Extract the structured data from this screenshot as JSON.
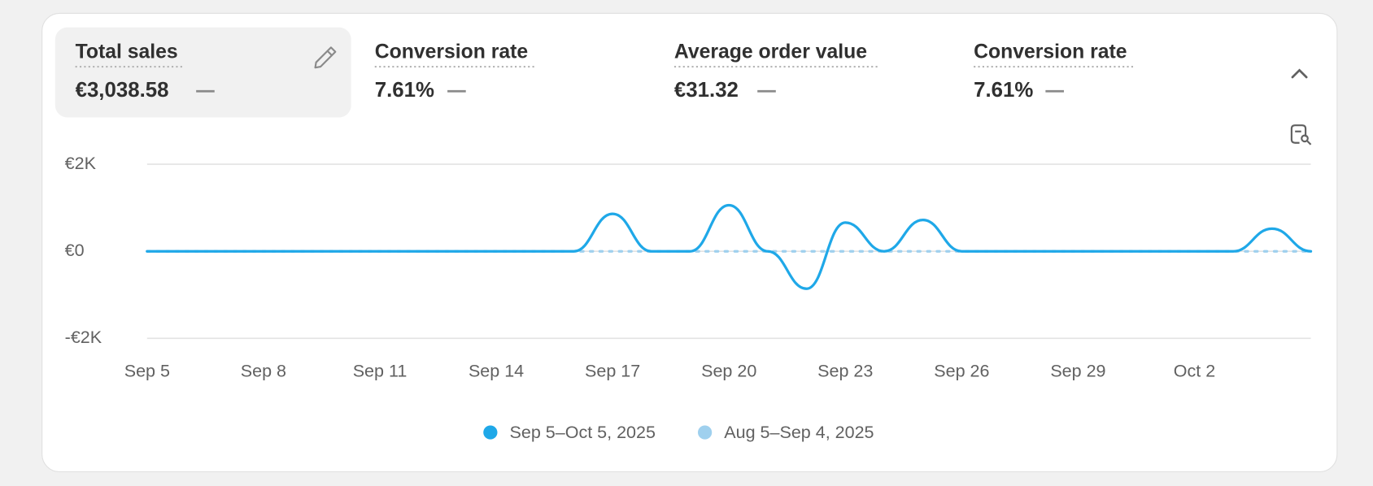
{
  "metrics": [
    {
      "title": "Total sales",
      "value": "€3,038.58"
    },
    {
      "title": "Conversion rate",
      "value": "7.61%"
    },
    {
      "title": "Average order value",
      "value": "€31.32"
    },
    {
      "title": "Conversion rate",
      "value": "7.61%"
    }
  ],
  "chart_data": {
    "type": "line",
    "categories": [
      "Sep 5",
      null,
      null,
      "Sep 8",
      null,
      null,
      "Sep 11",
      null,
      null,
      "Sep 14",
      null,
      null,
      "Sep 17",
      null,
      null,
      "Sep 20",
      null,
      null,
      "Sep 23",
      null,
      null,
      "Sep 26",
      null,
      null,
      "Sep 29",
      null,
      null,
      "Oct 2",
      null,
      null,
      null
    ],
    "series": [
      {
        "name": "Sep 5–Oct 5, 2025",
        "color": "#1fa8e8",
        "values": [
          0,
          0,
          0,
          0,
          0,
          0,
          0,
          0,
          0,
          0,
          0,
          0,
          860,
          0,
          0,
          1060,
          0,
          -860,
          660,
          0,
          720,
          0,
          0,
          0,
          0,
          0,
          0,
          0,
          0,
          520,
          0
        ]
      },
      {
        "name": "Aug 5–Sep 4, 2025",
        "color": "#9fd0ee",
        "dashed": true,
        "values": [
          0,
          0,
          0,
          0,
          0,
          0,
          0,
          0,
          0,
          0,
          0,
          0,
          0,
          0,
          0,
          0,
          0,
          0,
          0,
          0,
          0,
          0,
          0,
          0,
          0,
          0,
          0,
          0,
          0,
          0,
          0
        ]
      }
    ],
    "ylim": [
      -2000,
      2000
    ],
    "yticks": [
      {
        "value": 2000,
        "label": "€2K"
      },
      {
        "value": 0,
        "label": "€0"
      },
      {
        "value": -2000,
        "label": "-€2K"
      }
    ],
    "grid": true
  }
}
